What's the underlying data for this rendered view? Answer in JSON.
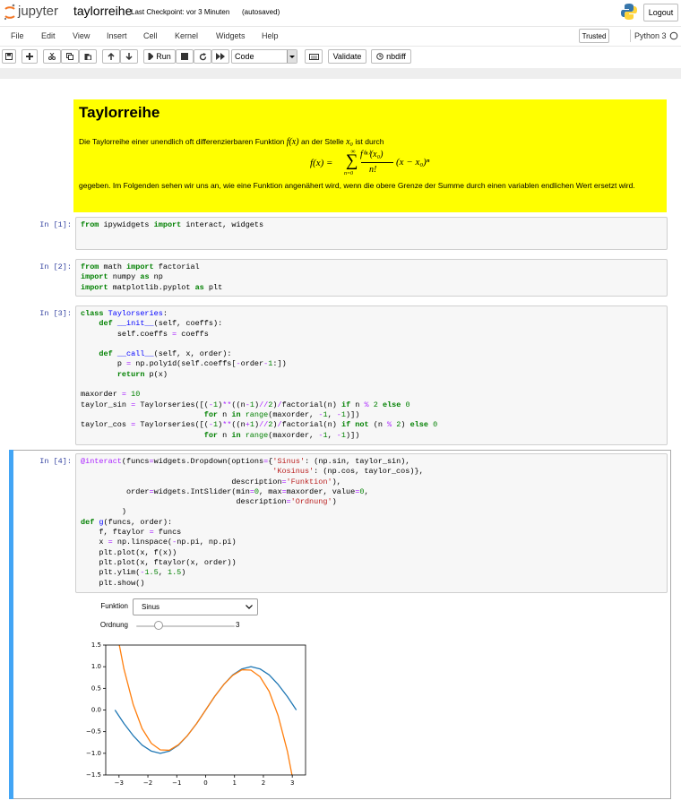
{
  "header": {
    "logo": "jupyter",
    "notebook_name": "taylorreihe",
    "checkpoint": "Last Checkpoint: vor 3 Minuten",
    "autosave": "(autosaved)",
    "logout": "Logout"
  },
  "menu": {
    "items": [
      "File",
      "Edit",
      "View",
      "Insert",
      "Cell",
      "Kernel",
      "Widgets",
      "Help"
    ],
    "trusted": "Trusted",
    "kernel": "Python 3"
  },
  "toolbar": {
    "run": "Run",
    "cell_type": "Code",
    "validate": "Validate",
    "nbdiff": "nbdiff"
  },
  "markdown": {
    "title": "Taylorreihe",
    "intro_before": "Die Taylorreihe einer unendlich oft differenzierbaren Funktion",
    "intro_fx": "f(x)",
    "intro_middle": "an der Stelle",
    "intro_x0": "x₀",
    "intro_after": "ist durch",
    "lhs": "f(x) =",
    "sum_sign": "∑",
    "sum_top": "∞",
    "sum_bottom": "n=0",
    "numerator": "f⁽ⁿ⁾(x₀)",
    "denominator": "n!",
    "term": "(x − x₀)ⁿ",
    "outro": "gegeben. Im Folgenden sehen wir uns an, wie eine Funktion angenähert wird, wenn die obere Grenze der Summe durch einen variablen endlichen Wert ersetzt wird."
  },
  "cells": [
    {
      "prompt": "In [1]:",
      "source": "from ipywidgets import interact, widgets"
    },
    {
      "prompt": "In [2]:",
      "source": "from math import factorial\nimport numpy as np\nimport matplotlib.pyplot as plt"
    },
    {
      "prompt": "In [3]:",
      "source": "class Taylorseries:\n    def __init__(self, coeffs):\n        self.coeffs = coeffs\n\n    def __call__(self, x, order):\n        p = np.poly1d(self.coeffs[-order-1:])\n        return p(x)\n\nmaxorder = 10\ntaylor_sin = Taylorseries([(-1)**((n-1)//2)/factorial(n) if n % 2 else 0\n                           for n in range(maxorder, -1, -1)])\ntaylor_cos = Taylorseries([(-1)**((n+1)//2)/factorial(n) if not (n % 2) else 0\n                           for n in range(maxorder, -1, -1)])"
    },
    {
      "prompt": "In [4]:",
      "source": "@interact(funcs=widgets.Dropdown(options={'Sinus': (np.sin, taylor_sin),\n                                          'Kosinus': (np.cos, taylor_cos)},\n                                 description='Funktion'),\n          order=widgets.IntSlider(min=0, max=maxorder, value=0,\n                                  description='Ordnung')\n         )\ndef g(funcs, order):\n    f, ftaylor = funcs\n    x = np.linspace(-np.pi, np.pi)\n    plt.plot(x, f(x))\n    plt.plot(x, ftaylor(x, order))\n    plt.ylim(-1.5, 1.5)\n    plt.show()"
    }
  ],
  "widgets": {
    "dropdown_label": "Funktion",
    "dropdown_value": "Sinus",
    "slider_label": "Ordnung",
    "slider_value": 3
  },
  "chart_data": {
    "type": "line",
    "x": [
      -3.14,
      -2.83,
      -2.51,
      -2.2,
      -1.88,
      -1.57,
      -1.26,
      -0.94,
      -0.63,
      -0.31,
      0,
      0.31,
      0.63,
      0.94,
      1.26,
      1.57,
      1.88,
      2.2,
      2.51,
      2.83,
      3.14
    ],
    "series": [
      {
        "color": "#1f77b4",
        "values": [
          0,
          -0.31,
          -0.59,
          -0.81,
          -0.95,
          -1,
          -0.95,
          -0.81,
          -0.59,
          -0.31,
          0,
          0.31,
          0.59,
          0.81,
          0.95,
          1,
          0.95,
          0.81,
          0.59,
          0.31,
          0
        ]
      },
      {
        "color": "#ff7f0e",
        "values": [
          2.02,
          0.95,
          0.13,
          -0.43,
          -0.77,
          -0.92,
          -0.93,
          -0.8,
          -0.59,
          -0.31,
          0,
          0.31,
          0.59,
          0.8,
          0.93,
          0.92,
          0.77,
          0.43,
          -0.13,
          -0.95,
          -2.02
        ]
      }
    ],
    "xlim": [
      -3.46,
      3.46
    ],
    "ylim": [
      -1.5,
      1.5
    ],
    "xticks": [
      {
        "value": -3,
        "label": "−3"
      },
      {
        "value": -2,
        "label": "−2"
      },
      {
        "value": -1,
        "label": "−1"
      },
      0,
      1,
      2,
      3
    ],
    "yticks": [
      {
        "value": -1.5,
        "label": "−1.5"
      },
      {
        "value": -1,
        "label": "−1.0"
      },
      {
        "value": -0.5,
        "label": "−0.5"
      },
      {
        "value": 0,
        "label": "0.0"
      },
      {
        "value": 0.5,
        "label": "0.5"
      },
      {
        "value": 1,
        "label": "1.0"
      },
      1.5
    ]
  }
}
